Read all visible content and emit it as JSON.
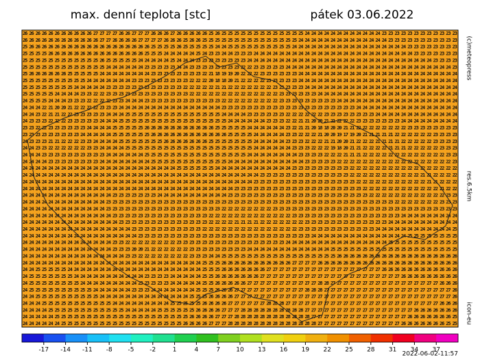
{
  "header": {
    "title": "max. denní teplota [stc]",
    "date": "pátek 03.06.2022"
  },
  "credits": {
    "copyright": "(c)meteopress",
    "resolution": "res.6.5km",
    "model": "icon-eu",
    "issued": "2022-06-02-11:57"
  },
  "map": {
    "background": "#f5a21e",
    "rows": [
      "26 26 26 26 26 26 26 26 26 26 26 27 27 27 27 26 26 27 27 27 26 26 26 27 26 26 26 26 26 25 26 25 25 25 25 25 25 25 25 25 25 25 25 25 24 24 24 24 24 24 24 24 24 24 24 24 23 23 23 23 23 23 23 23 23 23 23 23",
      "26 26 26 26 26 26 26 26 26 26 26 26 27 27 26 26 26 26 27 27 27 27 26 26 26 25 26 26 25 25 25 25 25 25 25 25 25 25 25 25 25 25 25 24 24 24 24 24 24 24 24 24 24 24 24 24 24 23 23 23 23 23 23 23 23 23 23 23",
      "25 26 26 26 26 26 26 26 26 26 26 26 26 26 26 26 26 26 26 26 25 25 25 25 26 25 25 25 25 25 24 24 25 25 25 25 25 25 25 25 25 25 24 24 24 24 24 24 24 24 24 24 24 24 24 24 24 24 24 24 23 23 23 23 23 23 23 23",
      "25 25 25 25 26 26 26 26 26 26 26 26 26 26 26 26 26 26 26 25 25 25 24 24 24 24 24 25 24 23 23 24 24 23 23 23 24 24 24 24 24 24 24 24 24 24 24 24 24 24 24 24 24 24 24 24 24 24 24 24 24 23 23 23 23 23 23 23",
      "25 25 25 25 25 25 25 25 25 25 25 25 26 25 25 25 25 25 24 24 24 24 24 25 24 24 24 23 23 23 23 23 23 23 23 24 24 24 24 24 24 24 24 24 24 24 24 24 24 24 24 24 24 24 24 24 24 24 24 24 24 24 24 24 23 23 23 23",
      "25 25 25 25 25 25 25 25 25 25 25 25 25 24 24 24 24 24 24 23 23 23 23 23 24 24 23 23 23 23 23 23 23 23 22 22 23 23 23 23 23 24 24 24 24 24 24 24 24 24 24 24 24 24 24 24 24 24 24 24 24 24 24 24 24 24 24 23",
      "25 26 26 26 26 26 26 25 25 25 25 25 24 24 24 24 24 24 24 24 23 23 23 23 23 23 23 23 22 21 18 19 19 20 22 22 22 23 23 23 23 23 23 24 24 24 24 24 24 24 24 24 24 24 24 24 24 24 24 24 24 24 24 24 24 24 24 24",
      "25 25 25 25 25 25 25 25 25 25 24 24 24 24 24 24 24 23 23 23 23 23 23 23 23 23 22 22 22 20 18 18 20 21 22 22 22 22 23 23 23 23 23 24 24 24 24 24 24 24 24 24 24 24 24 24 24 24 24 24 24 24 24 24 24 24 24 24",
      "25 25 25 25 25 25 25 25 24 24 24 24 24 23 23 23 23 23 23 23 23 23 23 23 23 22 22 22 22 22 21 21 22 22 22 22 22 22 22 23 23 23 23 23 24 24 24 24 24 24 24 24 24 24 24 24 24 24 24 24 24 24 24 24 24 24 24 24",
      "25 25 25 25 25 24 24 24 24 23 23 22 22 23 23 23 23 23 23 23 23 23 23 23 23 23 22 22 22 22 22 22 22 22 22 22 22 22 22 22 23 23 23 23 23 23 24 24 24 24 24 24 24 24 24 24 24 24 24 24 24 24 24 24 24 24 24 24",
      "24 25 25 25 24 24 24 23 23 23 22 22 22 22 23 23 24 24 24 23 23 23 23 23 23 23 23 23 23 23 23 22 22 22 22 22 22 22 22 22 23 23 23 23 23 23 23 23 23 24 24 24 24 24 24 24 24 24 24 24 24 24 24 24 24 24 24 24",
      "24 24 24 22 21 20 20 21 22 22 22 22 23 23 23 24 24 24 24 24 24 24 24 24 24 24 24 24 24 24 24 23 23 23 23 23 23 23 23 23 23 23 23 23 23 23 23 23 23 23 23 23 24 24 24 24 24 24 24 24 24 24 24 24 24 24 24 24",
      "24 24 23 22 21 21 22 22 23 23 23 23 23 24 24 24 25 25 25 25 25 25 25 25 25 25 25 25 25 25 25 24 24 24 24 23 23 23 23 23 23 22 22 22 22 22 22 23 23 23 23 23 23 23 23 24 24 24 24 24 24 24 24 24 24 24 24 24",
      "24 23 23 23 22 22 22 23 23 23 23 23 24 24 24 25 25 25 25 25 25 25 25 25 25 25 25 25 25 25 25 25 24 24 24 24 24 24 23 23 23 22 22 21 21 20 20 21 21 22 22 22 23 23 23 23 23 23 23 24 24 24 24 24 24 24 24 24",
      "23 23 22 22 23 23 23 23 23 23 24 24 24 24 25 25 25 25 25 26 26 26 26 26 26 26 26 26 26 26 25 25 25 25 25 24 24 24 24 24 24 23 22 21 21 20 18 18 20 20 21 21 22 22 22 22 22 22 22 22 23 23 23 23 23 23 23 23",
      "23 23 23 23 23 23 23 23 23 24 24 24 24 24 25 25 25 25 25 25 26 26 26 26 26 26 26 26 26 26 26 26 25 25 25 25 24 24 24 24 24 23 23 22 22 22 21 20 20 19 17 19 20 21 21 21 21 21 22 22 22 22 22 22 23 23 23 23",
      "24 23 23 23 21 21 22 22 22 23 23 24 24 24 24 25 25 25 25 25 25 25 26 26 26 26 26 26 26 25 25 25 25 25 25 25 24 24 24 24 24 23 23 23 22 22 22 21 21 20 20 21 22 22 22 21 21 21 21 22 22 22 22 22 23 23 23 23",
      "24 24 23 23 22 22 22 22 22 22 23 23 24 24 24 24 25 25 25 25 25 25 25 25 25 25 25 25 25 25 25 25 25 25 25 25 24 24 24 24 24 24 23 23 23 22 22 22 19 18 20 21 21 22 22 22 22 21 21 21 22 22 22 22 22 23 23 23",
      "24 24 24 23 23 23 23 23 23 23 23 23 23 24 24 24 24 24 24 25 25 25 25 25 25 25 25 25 25 25 25 25 25 25 25 24 24 24 24 24 24 24 24 23 23 23 23 22 22 22 21 21 21 22 22 22 22 22 22 22 22 22 22 22 22 22 23 23",
      "24 24 24 24 23 23 23 23 23 23 23 23 24 24 24 24 24 24 24 24 25 25 25 25 25 25 25 25 25 25 25 25 24 24 24 24 24 24 24 24 24 24 24 24 23 23 23 23 23 22 22 22 22 22 22 22 22 22 22 22 22 22 22 22 22 22 22 23",
      "24 24 24 24 24 24 24 24 24 24 24 24 24 24 24 24 24 24 24 24 24 24 24 24 25 25 25 25 25 25 24 24 24 24 24 24 24 24 24 24 24 24 23 23 23 23 23 23 23 23 23 22 22 22 22 22 22 22 22 22 22 22 22 22 22 22 22 22",
      "24 24 24 24 24 24 24 24 24 24 24 24 24 24 24 24 24 24 24 24 24 24 24 24 24 24 24 24 24 24 24 24 24 24 24 24 24 23 23 23 23 23 23 23 23 23 23 23 23 23 23 22 22 22 22 22 22 22 22 22 22 22 21 21 22 22 22 22",
      "24 24 24 24 24 24 24 24 24 24 24 24 24 24 24 24 24 24 24 24 24 24 24 24 24 24 24 24 24 24 24 24 24 24 24 24 23 23 23 23 23 23 23 23 23 23 23 23 23 23 23 23 22 22 22 22 22 22 22 22 22 22 22 21 21 22 22 22",
      "24 24 24 24 24 24 24 24 24 24 24 24 24 24 24 24 24 24 24 24 24 24 24 24 24 24 24 24 24 24 24 24 24 23 23 23 23 23 23 23 23 23 23 23 23 23 23 23 23 23 23 23 23 22 22 22 22 22 22 22 22 22 22 22 22 21 22 22",
      "24 24 24 24 24 24 24 24 24 24 24 24 24 24 23 23 23 23 23 23 23 24 24 24 24 24 24 24 24 24 24 24 23 23 23 23 23 23 23 23 23 23 23 23 23 23 23 23 23 23 23 23 23 23 22 22 22 22 22 22 22 22 22 22 22 22 23 23",
      "24 24 24 24 24 24 24 24 24 24 24 24 24 23 23 23 23 23 23 23 23 23 23 23 23 23 23 23 23 23 23 23 23 23 23 23 23 23 23 23 23 23 23 23 23 23 23 23 23 23 23 23 23 23 23 23 23 23 22 22 22 22 22 22 22 23 23 23",
      "24 24 24 24 24 24 24 24 24 24 24 24 24 23 23 23 23 23 23 23 23 23 23 23 23 23 23 23 23 23 23 22 22 22 22 22 22 22 22 23 23 23 23 23 23 23 23 23 23 23 23 23 23 23 23 23 23 23 23 23 23 23 23 23 23 23 23 23",
      "24 24 24 24 24 24 24 24 24 24 24 24 24 24 23 23 23 23 23 23 23 23 23 23 23 23 23 23 23 22 22 22 22 22 22 22 22 22 22 22 22 22 23 23 23 23 23 23 23 23 23 23 23 23 23 23 23 23 23 24 24 24 24 24 24 24 24 24",
      "24 24 24 24 24 24 24 24 24 24 24 24 24 24 24 23 23 23 23 23 23 23 23 23 23 23 23 23 23 22 22 22 22 21 21 21 21 22 22 22 22 22 22 22 23 23 23 23 23 23 23 23 23 23 23 23 23 24 24 24 24 24 24 24 24 24 24 24",
      "24 24 24 24 24 24 24 24 24 24 24 24 24 24 24 24 24 23 23 23 23 23 23 23 23 23 23 23 22 22 22 22 22 22 22 22 22 22 22 22 22 22 22 23 23 23 23 23 23 23 23 23 23 23 23 24 24 24 24 24 24 24 24 24 24 24 24 25",
      "24 24 24 24 24 24 24 24 24 24 24 24 24 24 24 24 24 24 23 23 23 23 23 23 23 23 23 23 23 23 23 23 23 23 23 23 23 23 23 23 23 23 23 23 23 24 24 24 24 24 24 24 24 24 24 24 24 24 24 24 25 25 25 25 25 25 25 25",
      "24 24 24 24 24 24 24 24 24 24 24 24 24 24 23 23 22 22 22 22 22 22 22 22 23 23 23 23 23 23 23 23 23 23 23 23 23 23 23 23 23 24 24 24 24 24 24 24 24 24 24 24 24 24 24 24 24 25 25 25 25 25 25 25 25 25 25 25",
      "24 24 24 24 24 24 24 24 24 24 24 24 24 24 23 23 23 20 20 21 22 22 22 22 22 22 23 23 23 23 23 23 23 23 23 24 24 24 24 24 24 24 24 24 24 24 24 24 25 25 25 25 25 25 25 25 25 25 25 25 25 25 25 25 25 25 25 25",
      "24 24 24 24 24 24 24 24 24 24 24 24 24 24 24 24 23 23 22 22 22 22 22 22 22 22 23 23 23 24 24 25 25 25 25 25 25 25 25 25 25 25 25 25 25 25 25 25 25 26 26 26 26 26 26 26 26 26 26 26 26 26 26 26 26 26 26 26",
      "24 24 24 24 24 24 24 24 24 24 24 24 24 24 24 24 24 24 24 24 24 24 24 24 24 24 24 24 25 25 25 26 26 26 26 26 26 26 26 26 26 26 27 27 27 27 26 26 26 26 26 26 26 26 26 26 26 26 26 26 26 26 26 26 26 26 26 26",
      "24 24 25 25 25 25 25 24 24 24 24 24 24 24 24 24 24 24 24 24 24 24 24 24 24 24 24 24 25 25 25 26 26 26 26 26 26 26 27 27 27 27 27 27 27 27 27 27 27 27 27 27 27 27 27 27 26 26 26 26 26 26 26 26 26 26 26 26",
      "24 25 25 25 25 25 25 25 24 24 24 24 24 24 24 24 24 24 24 23 23 23 23 24 24 24 24 24 25 25 26 26 26 26 26 26 26 27 27 27 27 27 27 27 27 27 27 27 27 27 27 27 27 27 27 27 27 27 27 26 26 26 26 26 26 26 26 26",
      "24 25 25 25 25 25 25 25 25 24 24 24 24 24 24 24 24 24 23 23 23 23 23 24 24 24 24 24 25 25 26 26 26 26 26 27 27 27 27 27 27 27 27 27 27 27 28 28 27 27 27 27 27 27 27 27 27 27 27 27 27 27 27 27 27 26 26 26",
      "24 25 25 25 25 25 25 25 25 25 25 24 24 24 24 24 24 23 23 23 24 24 24 24 24 24 24 25 25 25 26 26 26 27 27 27 27 27 27 27 27 27 27 27 28 28 28 27 27 27 27 27 27 27 27 27 27 27 27 27 27 27 27 27 27 27 27 26",
      "24 24 25 25 25 25 25 25 25 25 25 25 24 24 24 24 24 24 24 24 24 24 24 24 24 24 25 25 25 26 26 26 26 27 27 27 27 27 27 27 27 27 27 27 27 27 27 27 27 27 27 27 27 27 27 27 27 27 27 27 27 27 27 27 27 27 27 26",
      "24 24 24 25 25 25 25 25 25 25 25 25 25 25 24 24 24 24 24 24 24 24 24 25 25 25 25 25 26 26 26 26 27 27 27 27 27 27 28 28 28 27 27 27 27 27 27 27 27 27 27 27 27 27 27 27 27 27 27 27 27 27 27 27 27 26 26 26",
      "24 24 24 24 25 25 25 25 25 25 25 25 25 25 25 25 24 24 24 24 24 25 25 25 25 25 25 26 26 26 26 27 27 27 28 28 28 28 28 28 28 28 28 28 27 27 27 27 27 27 27 27 27 27 27 27 27 27 27 27 27 26 26 26 26 26 26 26",
      "24 24 24 24 24 25 25 25 25 25 25 25 25 25 25 25 25 25 25 25 25 25 25 25 25 25 26 26 26 26 27 27 27 28 28 28 28 28 28 28 28 28 28 28 28 27 27 27 27 27 27 27 27 27 27 27 27 27 27 27 26 26 26 26 26 26 26 25",
      "24 24 24 24 24 24 25 25 25 25 25 25 25 25 25 25 25 25 25 25 25 25 25 25 25 26 26 26 26 27 27 27 28 28 28 28 28 28 28 28 28 28 28 28 28 28 27 27 27 27 27 27 27 27 27 27 27 27 27 26 26 26 26 26 26 26 25 25"
    ]
  },
  "colorbar": {
    "range": [
      -20,
      40
    ],
    "ticks": [
      -17,
      -14,
      -11,
      -8,
      -5,
      -2,
      1,
      4,
      7,
      10,
      13,
      16,
      19,
      22,
      25,
      28,
      31,
      34,
      37
    ],
    "colors": [
      "#1818d8",
      "#1850f0",
      "#1890f8",
      "#18c0f8",
      "#20e0f0",
      "#20f0c0",
      "#20e090",
      "#20d050",
      "#30c020",
      "#80d020",
      "#b0e020",
      "#e0e020",
      "#f0d010",
      "#f0b010",
      "#f09000",
      "#f06000",
      "#f03000",
      "#f00020",
      "#f00080",
      "#f000c0"
    ]
  }
}
